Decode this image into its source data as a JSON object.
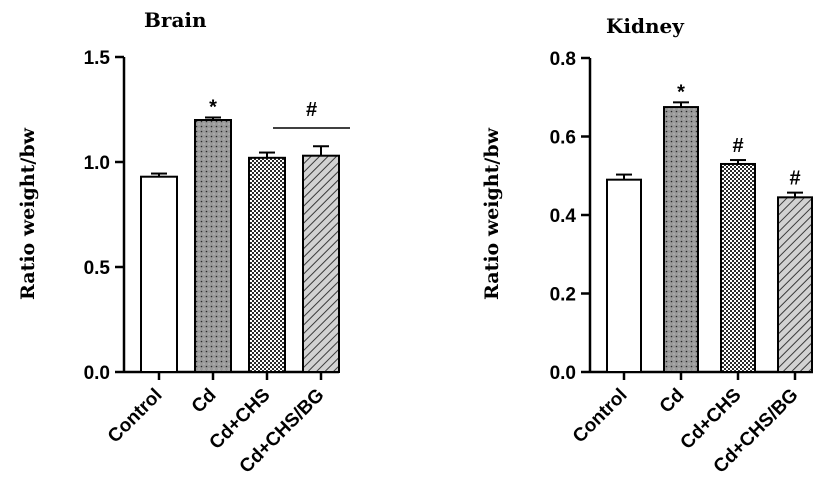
{
  "chart_data": [
    {
      "type": "bar",
      "title": "Brain",
      "ylabel": "Ratio weight/bw",
      "xlabel": "",
      "ylim": [
        0,
        1.5
      ],
      "yticks": [
        "0.0",
        "0.5",
        "1.0",
        "1.5"
      ],
      "yticks_values": [
        0,
        0.5,
        1.0,
        1.5
      ],
      "categories": [
        "Control",
        "Cd",
        "Cd+CHS",
        "Cd+CHS/BG"
      ],
      "values": [
        0.93,
        1.2,
        1.02,
        1.03
      ],
      "errors": [
        0.015,
        0.012,
        0.025,
        0.045
      ],
      "bar_patterns": [
        "white",
        "dots",
        "checker",
        "hatch"
      ],
      "annotations": [
        {
          "text": "*",
          "category": "Cd"
        },
        {
          "text": "#",
          "category_span": [
            "Cd+CHS",
            "Cd+CHS/BG"
          ]
        }
      ],
      "grid": false
    },
    {
      "type": "bar",
      "title": "Kidney",
      "ylabel": "Ratio weight/bw",
      "xlabel": "",
      "ylim": [
        0,
        0.8
      ],
      "yticks": [
        "0.0",
        "0.2",
        "0.4",
        "0.6",
        "0.8"
      ],
      "yticks_values": [
        0,
        0.2,
        0.4,
        0.6,
        0.8
      ],
      "categories": [
        "Control",
        "Cd",
        "Cd+CHS",
        "Cd+CHS/BG"
      ],
      "values": [
        0.49,
        0.675,
        0.53,
        0.445
      ],
      "errors": [
        0.013,
        0.012,
        0.01,
        0.012
      ],
      "bar_patterns": [
        "white",
        "dots",
        "checker",
        "hatch"
      ],
      "annotations": [
        {
          "text": "*",
          "category": "Cd"
        },
        {
          "text": "#",
          "category": "Cd+CHS"
        },
        {
          "text": "#",
          "category": "Cd+CHS/BG"
        }
      ],
      "grid": false
    }
  ]
}
